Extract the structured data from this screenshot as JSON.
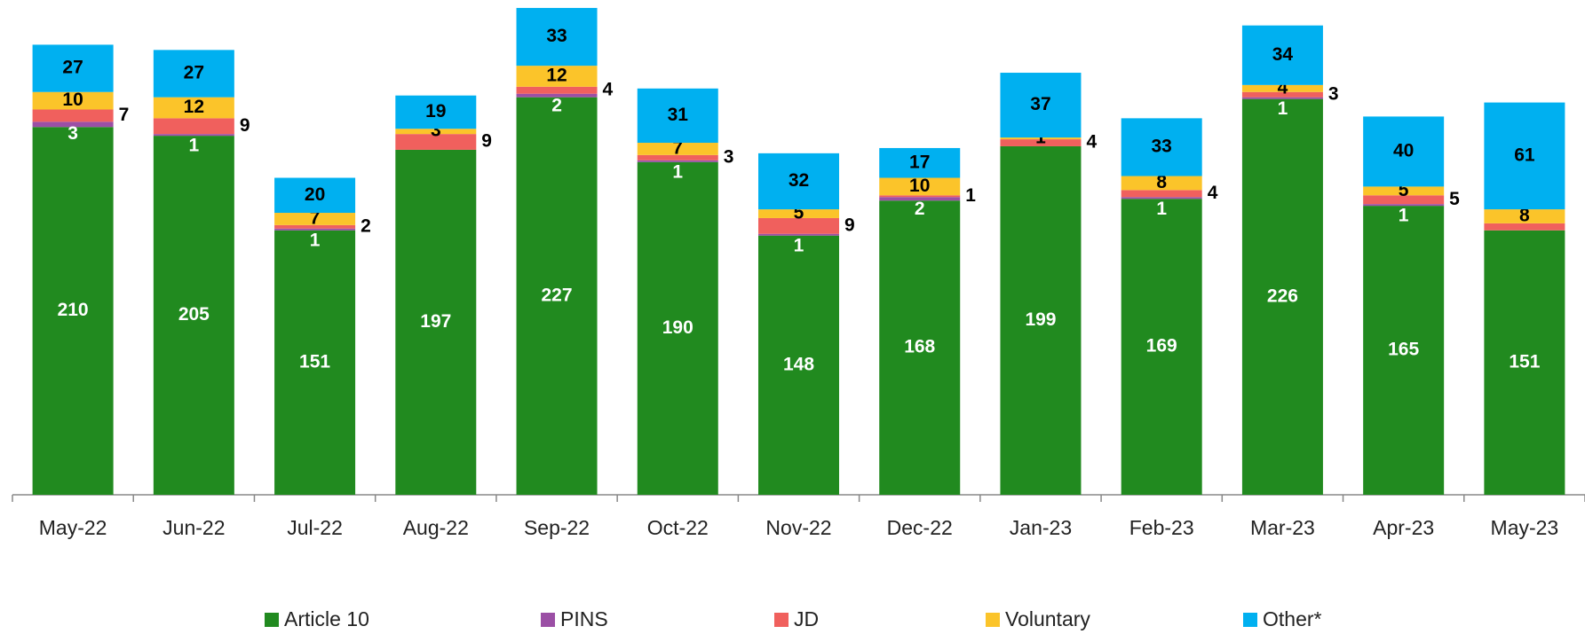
{
  "chart_data": {
    "type": "stacked_bar",
    "categories": [
      "May-22",
      "Jun-22",
      "Jul-22",
      "Aug-22",
      "Sep-22",
      "Oct-22",
      "Nov-22",
      "Dec-22",
      "Jan-23",
      "Feb-23",
      "Mar-23",
      "Apr-23",
      "May-23"
    ],
    "ylim": [
      0,
      280
    ],
    "series": [
      {
        "name": "Article 10",
        "color": "#218a1f",
        "values": [
          210,
          205,
          151,
          197,
          227,
          190,
          148,
          168,
          199,
          169,
          226,
          165,
          151
        ]
      },
      {
        "name": "PINS",
        "color": "#9b4fa5",
        "values": [
          3,
          1,
          1,
          0,
          2,
          1,
          1,
          2,
          0,
          1,
          1,
          1,
          0
        ],
        "value_labels": [
          "3",
          "1",
          "1",
          null,
          "2",
          "1",
          "1",
          "2",
          null,
          "1",
          "1",
          "1",
          null
        ]
      },
      {
        "name": "JD",
        "color": "#f0605d",
        "values": [
          7,
          9,
          2,
          9,
          4,
          3,
          9,
          1,
          4,
          4,
          3,
          5,
          4
        ],
        "value_labels": [
          "7",
          "9",
          "2",
          "9",
          "4",
          "3",
          "9",
          "1",
          "4",
          "4",
          "3",
          "5",
          null
        ]
      },
      {
        "name": "Voluntary",
        "color": "#fbc42a",
        "values": [
          10,
          12,
          7,
          3,
          12,
          7,
          5,
          10,
          1,
          8,
          4,
          5,
          8
        ]
      },
      {
        "name": "Other*",
        "color": "#00b0f0",
        "values": [
          27,
          27,
          20,
          19,
          33,
          31,
          32,
          17,
          37,
          33,
          34,
          40,
          61
        ]
      }
    ]
  }
}
